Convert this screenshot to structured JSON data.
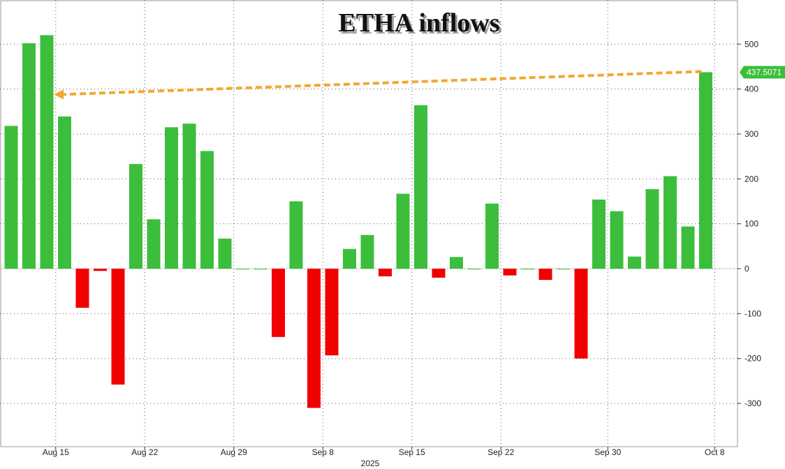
{
  "chart_data": {
    "type": "bar",
    "title": "ETHA inflows",
    "xlabel": "2025",
    "ylabel": "",
    "ylim": [
      -360,
      590
    ],
    "y_ticks": [
      500,
      400,
      300,
      200,
      100,
      0,
      -100,
      -200,
      -300
    ],
    "x_tick_labels": [
      "Aug 15",
      "Aug 22",
      "Aug 29",
      "Sep 8",
      "Sep 15",
      "Sep 22",
      "Sep 30",
      "Oct 8"
    ],
    "x_tick_after_bar": [
      3,
      8,
      13,
      18,
      23,
      28,
      34,
      40
    ],
    "values": [
      318,
      502,
      520,
      339,
      -87,
      -5,
      -258,
      233,
      110,
      315,
      323,
      262,
      67,
      0,
      0,
      -152,
      150,
      -310,
      -193,
      44,
      75,
      -17,
      167,
      364,
      -20,
      26,
      0,
      145,
      -15,
      0,
      -25,
      0,
      -200,
      154,
      128,
      27,
      177,
      206,
      94,
      437.5071
    ],
    "last_value_label": "437.5071",
    "reference_line": {
      "value": 437.5071,
      "from_bar": 2,
      "to_bar": 39,
      "style": "dashed-arrow"
    },
    "colors": {
      "positive": "#3cbe3c",
      "negative": "#f00000",
      "badge": "#3cbe3c",
      "arrow": "#f0a830",
      "grid": "#555555",
      "axis_text": "#222222"
    },
    "grid": true,
    "y_axis_position": "right"
  }
}
